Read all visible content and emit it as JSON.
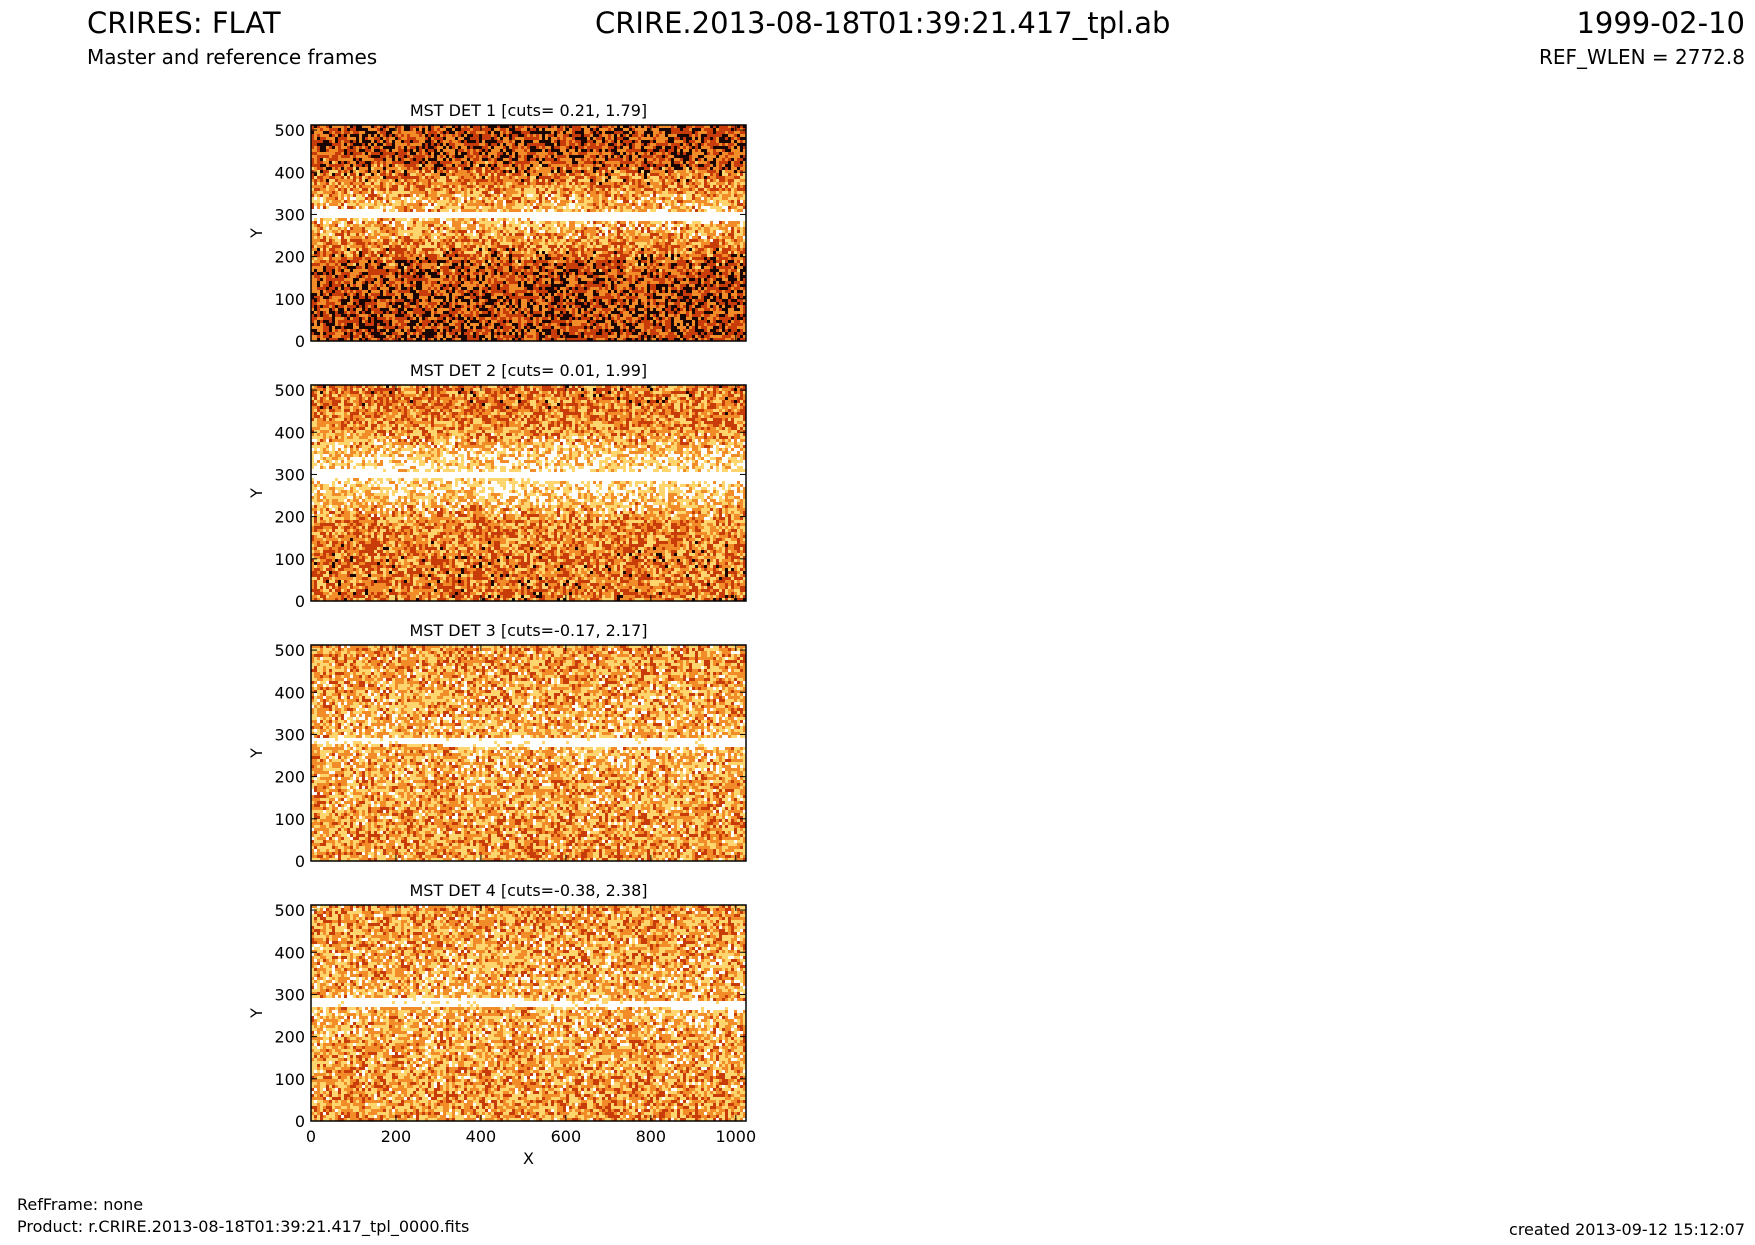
{
  "header": {
    "title_left": "CRIRES: FLAT",
    "title_center": "CRIRE.2013-08-18T01:39:21.417_tpl.ab",
    "title_right": "1999-02-10",
    "subtitle_left": "Master and reference frames",
    "subtitle_right": "REF_WLEN = 2772.8"
  },
  "footer": {
    "refframe": "RefFrame: none",
    "product": "Product: r.CRIRE.2013-08-18T01:39:21.417_tpl_0000.fits",
    "created": "created 2013-09-12 15:12:07"
  },
  "colors": {
    "dark": "#1a0500",
    "mid": "#c83c0a",
    "bright": "#f28c28",
    "light": "#ffd56e",
    "white": "#ffffff"
  },
  "chart_data": [
    {
      "type": "heatmap",
      "title": "MST DET 1 [cuts= 0.21, 1.79]",
      "ylabel": "Y",
      "xlabel": "",
      "xlim": [
        0,
        1024
      ],
      "ylim": [
        0,
        512
      ],
      "xticks": [
        0,
        200,
        400,
        600,
        800,
        1000
      ],
      "yticks": [
        0,
        100,
        200,
        300,
        400,
        500
      ],
      "cuts": [
        0.21,
        1.79
      ],
      "colormap": "hot",
      "features": {
        "bright_band_y": 300,
        "band_intensity": "high",
        "background": "dark",
        "gradient_upper_half": true
      }
    },
    {
      "type": "heatmap",
      "title": "MST DET 2 [cuts= 0.01, 1.99]",
      "ylabel": "Y",
      "xlabel": "",
      "xlim": [
        0,
        1024
      ],
      "ylim": [
        0,
        512
      ],
      "xticks": [
        0,
        200,
        400,
        600,
        800,
        1000
      ],
      "yticks": [
        0,
        100,
        200,
        300,
        400,
        500
      ],
      "cuts": [
        0.01,
        1.99
      ],
      "colormap": "hot",
      "features": {
        "bright_band_y": 300,
        "band_intensity": "high",
        "background": "medium",
        "gradient_upper_half": true
      }
    },
    {
      "type": "heatmap",
      "title": "MST DET 3 [cuts=-0.17, 2.17]",
      "ylabel": "Y",
      "xlabel": "",
      "xlim": [
        0,
        1024
      ],
      "ylim": [
        0,
        512
      ],
      "xticks": [
        0,
        200,
        400,
        600,
        800,
        1000
      ],
      "yticks": [
        0,
        100,
        200,
        300,
        400,
        500
      ],
      "cuts": [
        -0.17,
        2.17
      ],
      "colormap": "hot",
      "features": {
        "bright_band_y": 285,
        "band_intensity": "medium",
        "background": "bright",
        "gradient_upper_half": false
      }
    },
    {
      "type": "heatmap",
      "title": "MST DET 4 [cuts=-0.38, 2.38]",
      "ylabel": "Y",
      "xlabel": "X",
      "xlim": [
        0,
        1024
      ],
      "ylim": [
        0,
        512
      ],
      "xticks": [
        0,
        200,
        400,
        600,
        800,
        1000
      ],
      "yticks": [
        0,
        100,
        200,
        300,
        400,
        500
      ],
      "cuts": [
        -0.38,
        2.38
      ],
      "colormap": "hot",
      "features": {
        "bright_band_y": 280,
        "band_intensity": "medium",
        "background": "bright",
        "gradient_upper_half": false
      }
    }
  ]
}
